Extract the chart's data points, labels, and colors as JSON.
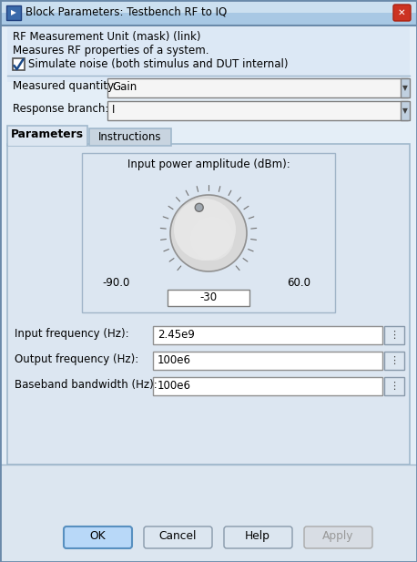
{
  "title": "Block Parameters: Testbench RF to IQ",
  "header_text1": "RF Measurement Unit (mask) (link)",
  "header_text2": "Measures RF properties of a system.",
  "checkbox_text": "Simulate noise (both stimulus and DUT internal)",
  "label1": "Measured quantity:",
  "dropdown1": "Gain",
  "label2": "Response branch:",
  "dropdown2": "I",
  "tab1": "Parameters",
  "tab2": "Instructions",
  "knob_label": "Input power amplitude (dBm):",
  "knob_min": "-90.0",
  "knob_max": "60.0",
  "knob_value": "-30",
  "field1_label": "Input frequency (Hz):",
  "field1_value": "2.45e9",
  "field2_label": "Output frequency (Hz):",
  "field2_value": "100e6",
  "field3_label": "Baseband bandwidth (Hz):",
  "field3_value": "100e6",
  "btn_ok": "OK",
  "btn_cancel": "Cancel",
  "btn_help": "Help",
  "btn_apply": "Apply",
  "titlebar_top": "#b8d4ea",
  "titlebar_bot": "#8ab4d4",
  "dialog_bg": "#e8eef5",
  "panel_bg": "#dce6f1",
  "white": "#ffffff",
  "tab_inactive": "#c8d4e0",
  "border_dark": "#6a8aaa",
  "border_light": "#a0b8cc",
  "text_dark": "#1a1a1a",
  "text_gray": "#888888",
  "btn_ok_face": "#b8d8f8",
  "btn_ok_edge": "#5890c0",
  "btn_face": "#dce6f0",
  "btn_edge": "#8899aa",
  "dropdown_face": "#f5f5f5",
  "knob_face": "#e0e0e0",
  "knob_edge": "#909090",
  "dot_face": "#a0a8b0",
  "field_face": "#ffffff",
  "field_edge": "#909090",
  "dots_btn_face": "#dce6f0",
  "dots_btn_edge": "#8899aa",
  "close_face": "#cc3322",
  "close_edge": "#aa2211"
}
